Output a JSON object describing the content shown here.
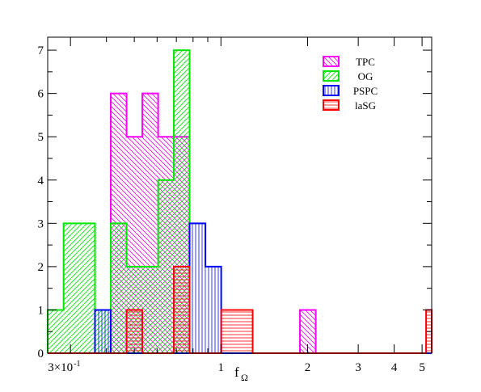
{
  "chart_data": {
    "type": "histogram",
    "xscale": "log",
    "xlim": [
      0.25,
      5.4
    ],
    "ylim": [
      0,
      7.3
    ],
    "xlabel_main": "f",
    "xlabel_sub": "Ω",
    "legend_position": "top-right",
    "grid": false,
    "x_ticks": [
      {
        "value": 0.3,
        "label": "3×10",
        "exp": "-1"
      },
      {
        "value": 1,
        "label": "1"
      },
      {
        "value": 2,
        "label": "2"
      },
      {
        "value": 3,
        "label": "3"
      },
      {
        "value": 4,
        "label": "4"
      },
      {
        "value": 5,
        "label": "5"
      }
    ],
    "y_ticks": [
      0,
      1,
      2,
      3,
      4,
      5,
      6,
      7
    ],
    "bin_edges": [
      0.25,
      0.284,
      0.322,
      0.365,
      0.414,
      0.47,
      0.533,
      0.605,
      0.686,
      0.778,
      0.883,
      1.002,
      1.136,
      1.289,
      1.462,
      1.659,
      1.882,
      2.135,
      2.422,
      2.748,
      3.118,
      3.537,
      4.012,
      4.552,
      5.164,
      5.4
    ],
    "series": [
      {
        "name": "TPC",
        "color": "#ff00ff",
        "pattern": "diag-back",
        "counts": [
          0,
          0,
          0,
          0,
          6,
          5,
          6,
          5,
          5,
          0,
          0,
          0,
          0,
          0,
          0,
          0,
          1,
          0,
          0,
          0,
          0,
          0,
          0,
          0,
          0
        ]
      },
      {
        "name": "OG",
        "color": "#00e600",
        "pattern": "diag-fwd",
        "counts": [
          1,
          3,
          3,
          1,
          3,
          2,
          2,
          4,
          7,
          0,
          0,
          0,
          0,
          0,
          0,
          0,
          0,
          0,
          0,
          0,
          0,
          0,
          0,
          0,
          0
        ]
      },
      {
        "name": "PSPC",
        "color": "#0000ff",
        "pattern": "vertical",
        "counts": [
          0,
          0,
          0,
          1,
          0,
          0,
          0,
          0,
          0,
          3,
          2,
          0,
          0,
          0,
          0,
          0,
          0,
          0,
          0,
          0,
          0,
          0,
          0,
          0,
          0
        ]
      },
      {
        "name": "laSG",
        "color": "#ff0000",
        "pattern": "horizontal",
        "counts": [
          0,
          0,
          0,
          0,
          0,
          1,
          0,
          0,
          2,
          0,
          0,
          1,
          1,
          0,
          0,
          0,
          0,
          0,
          0,
          0,
          0,
          0,
          0,
          0,
          1
        ]
      }
    ]
  }
}
